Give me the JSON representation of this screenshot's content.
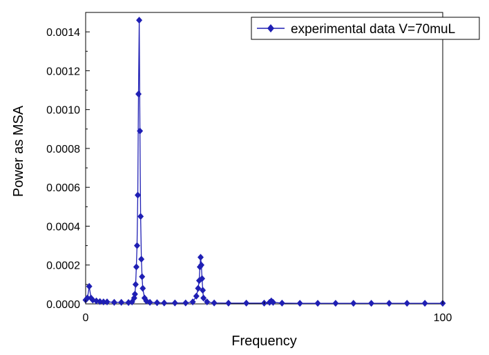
{
  "chart_data": {
    "type": "line",
    "title": "",
    "xlabel": "Frequency",
    "ylabel": "Power as MSA",
    "xlim": [
      0,
      100
    ],
    "ylim": [
      0,
      0.0015
    ],
    "x_ticks": [
      0,
      100
    ],
    "x_tick_labels": [
      "0",
      "100"
    ],
    "y_ticks": [
      0,
      0.0002,
      0.0004,
      0.0006,
      0.0008,
      0.001,
      0.0012,
      0.0014
    ],
    "y_tick_labels": [
      "0.0000",
      "0.0002",
      "0.0004",
      "0.0006",
      "0.0008",
      "0.0010",
      "0.0012",
      "0.0014"
    ],
    "grid": false,
    "legend_position": "top-right",
    "series": [
      {
        "name": "experimental data V=70muL",
        "color": "#1f1fb4",
        "marker": "diamond",
        "x": [
          0,
          0.5,
          1,
          1.5,
          2,
          3,
          4,
          5,
          6,
          8,
          10,
          12,
          13,
          13.6,
          13.8,
          14,
          14.2,
          14.4,
          14.6,
          14.8,
          15.0,
          15.2,
          15.4,
          15.6,
          15.8,
          16.0,
          16.5,
          17,
          18,
          20,
          22,
          25,
          28,
          30,
          31,
          31.5,
          31.8,
          32.0,
          32.2,
          32.4,
          32.6,
          32.8,
          33,
          34,
          36,
          40,
          45,
          50,
          51.5,
          52,
          52.5,
          55,
          60,
          65,
          70,
          75,
          80,
          85,
          90,
          95,
          100
        ],
        "y": [
          2e-05,
          3e-05,
          9e-05,
          3e-05,
          2e-05,
          1.5e-05,
          1.2e-05,
          1e-05,
          1e-05,
          8e-06,
          8e-06,
          7e-06,
          1e-05,
          3e-05,
          5e-05,
          0.0001,
          0.00019,
          0.0003,
          0.00056,
          0.00108,
          0.00146,
          0.00089,
          0.00045,
          0.00023,
          0.00014,
          8e-05,
          3e-05,
          1.5e-05,
          8e-06,
          6e-06,
          5e-06,
          5e-06,
          5e-06,
          1e-05,
          4e-05,
          8e-05,
          0.00012,
          0.00019,
          0.00024,
          0.0002,
          0.00013,
          7e-05,
          3e-05,
          1e-05,
          5e-06,
          4e-06,
          4e-06,
          4e-06,
          8e-06,
          1.5e-05,
          8e-06,
          4e-06,
          3e-06,
          3e-06,
          3e-06,
          3e-06,
          3e-06,
          3e-06,
          3e-06,
          3e-06,
          3e-06
        ]
      }
    ]
  }
}
